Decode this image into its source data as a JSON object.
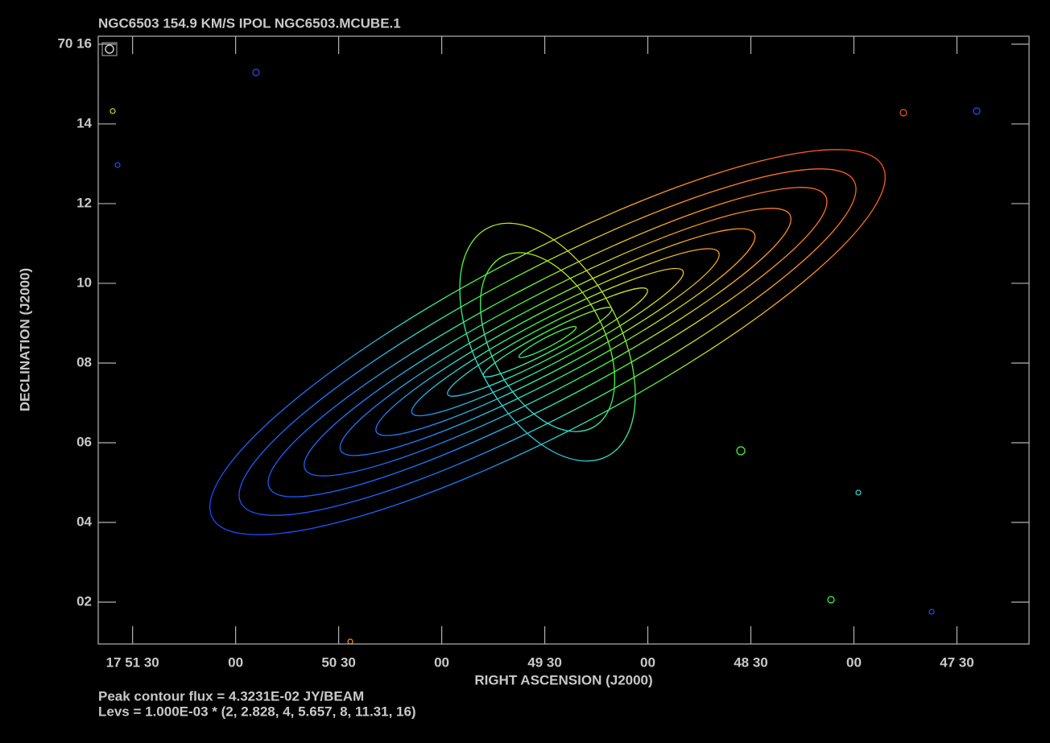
{
  "chart_data": {
    "type": "contour",
    "title": "NGC6503  154.9 KM/S  IPOL  NGC6503.MCUBE.1",
    "x_label": "RIGHT ASCENSION (J2000)",
    "y_label": "DECLINATION (J2000)",
    "notes": [
      "Peak contour flux =  4.3231E-02 JY/BEAM",
      "Levs = 1.000E-03 * (2, 2.828, 4, 5.657, 8, 11.31, 16)"
    ],
    "xlim": [
      3100,
      2829
    ],
    "xticks": [
      {
        "value": 3090,
        "label": "17 51 30"
      },
      {
        "value": 3060,
        "label": "00"
      },
      {
        "value": 3030,
        "label": "50 30"
      },
      {
        "value": 3000,
        "label": "00"
      },
      {
        "value": 2970,
        "label": "49 30"
      },
      {
        "value": 2940,
        "label": "00"
      },
      {
        "value": 2910,
        "label": "48 30"
      },
      {
        "value": 2880,
        "label": "00"
      },
      {
        "value": 2850,
        "label": "47 30"
      }
    ],
    "ylim": [
      0.95,
      16.2
    ],
    "yticks": [
      {
        "value": 16,
        "label": "70 16"
      },
      {
        "value": 14,
        "label": "14"
      },
      {
        "value": 12,
        "label": "12"
      },
      {
        "value": 10,
        "label": "10"
      },
      {
        "value": 8,
        "label": "08"
      },
      {
        "value": 6,
        "label": "06"
      },
      {
        "value": 4,
        "label": "04"
      },
      {
        "value": 2,
        "label": "02"
      }
    ]
  }
}
